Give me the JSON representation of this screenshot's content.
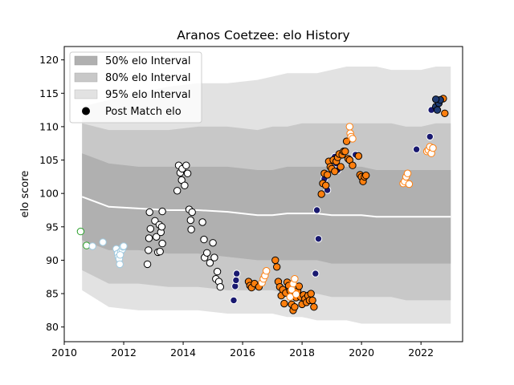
{
  "chart_data": {
    "type": "scatter",
    "title": "Aranos Coetzee: elo History",
    "xlabel": "",
    "ylabel": "elo score",
    "xlim": [
      2010.0,
      2023.4
    ],
    "ylim": [
      77.8,
      122
    ],
    "x_ticks": [
      2010,
      2012,
      2014,
      2016,
      2018,
      2020,
      2022
    ],
    "y_ticks": [
      80,
      85,
      90,
      95,
      100,
      105,
      110,
      115,
      120
    ],
    "grid": false,
    "legend": {
      "placement": "top-left",
      "entries": [
        "50% elo Interval",
        "80% elo Interval",
        "95% elo Interval",
        "Post Match elo"
      ]
    },
    "band_x": [
      2010.6,
      2011.5,
      2012.5,
      2013.5,
      2014.5,
      2015.5,
      2016.5,
      2017.0,
      2017.5,
      2018.0,
      2018.5,
      2019.0,
      2019.5,
      2020.0,
      2020.5,
      2021.0,
      2021.5,
      2022.0,
      2022.5,
      2023.0
    ],
    "interval_95": {
      "upper": [
        113,
        114,
        115,
        116,
        116.5,
        116.5,
        117,
        117.5,
        118,
        118,
        118,
        118.5,
        119,
        119,
        119,
        118.5,
        118.5,
        118.5,
        119,
        119
      ],
      "lower": [
        85.5,
        83,
        82.5,
        82.5,
        82.5,
        82,
        82,
        82,
        81.5,
        81.5,
        81,
        81,
        81,
        80.5,
        80.5,
        80.5,
        80.5,
        80.5,
        80.5,
        80.5
      ]
    },
    "interval_80": {
      "upper": [
        110.5,
        109.5,
        109.5,
        109.5,
        110,
        110,
        109.5,
        110,
        110,
        110.5,
        110.5,
        110.5,
        110.5,
        110.5,
        110.5,
        110.5,
        110,
        110,
        110.5,
        110.5
      ],
      "lower": [
        88.5,
        86.5,
        86.5,
        86,
        86,
        85.5,
        85.5,
        85.5,
        85,
        85,
        85,
        84.5,
        84.5,
        84.5,
        84.5,
        84.5,
        84,
        84,
        84,
        84
      ]
    },
    "interval_50": {
      "upper": [
        106,
        104.5,
        104,
        104,
        104,
        104,
        103.5,
        103.5,
        104,
        104,
        104,
        104,
        104,
        104,
        103.5,
        103.5,
        103.5,
        103.5,
        103.5,
        103.5
      ],
      "lower": [
        93,
        91.5,
        91.5,
        91,
        91,
        90.5,
        90,
        90,
        90,
        90,
        90,
        89.5,
        89.5,
        89.5,
        89.5,
        89.5,
        89.5,
        89.5,
        89.5,
        89.5
      ]
    },
    "series": [
      {
        "fill": "#ffffff",
        "edge": "#2ca02c",
        "points": [
          [
            2010.55,
            94.3
          ],
          [
            2010.75,
            92.2
          ]
        ]
      },
      {
        "fill": "#ffffff",
        "edge": "#9ecae1",
        "points": [
          [
            2010.95,
            92.1
          ],
          [
            2011.3,
            92.7
          ],
          [
            2011.75,
            91.7
          ],
          [
            2011.8,
            91.0
          ],
          [
            2011.82,
            90.5
          ],
          [
            2011.85,
            90.2
          ],
          [
            2011.87,
            89.4
          ],
          [
            2011.9,
            91.3
          ],
          [
            2011.95,
            91.6
          ],
          [
            2011.97,
            92.0
          ],
          [
            2012.0,
            92.1
          ],
          [
            2011.88,
            90.8
          ]
        ]
      },
      {
        "fill": "#ffffff",
        "edge": "#000000",
        "points": [
          [
            2012.8,
            89.4
          ],
          [
            2012.83,
            91.5
          ],
          [
            2012.85,
            93.3
          ],
          [
            2012.9,
            94.7
          ],
          [
            2012.87,
            97.2
          ],
          [
            2013.05,
            95.9
          ],
          [
            2013.1,
            93.5
          ],
          [
            2013.15,
            91.2
          ],
          [
            2013.2,
            95.3
          ],
          [
            2013.25,
            94.2
          ],
          [
            2013.3,
            92.5
          ],
          [
            2013.22,
            91.3
          ],
          [
            2013.3,
            97.3
          ],
          [
            2013.28,
            95.0
          ],
          [
            2013.8,
            100.4
          ],
          [
            2013.85,
            104.2
          ],
          [
            2013.9,
            103.1
          ],
          [
            2013.95,
            102.0
          ],
          [
            2013.97,
            103.7
          ],
          [
            2014.05,
            101.2
          ],
          [
            2014.1,
            104.2
          ],
          [
            2014.15,
            103.0
          ],
          [
            2014.2,
            97.6
          ],
          [
            2014.25,
            96.0
          ],
          [
            2014.27,
            94.6
          ],
          [
            2014.3,
            97.2
          ],
          [
            2014.65,
            95.7
          ],
          [
            2014.7,
            93.1
          ],
          [
            2014.72,
            90.4
          ],
          [
            2014.8,
            91.1
          ],
          [
            2014.9,
            89.6
          ],
          [
            2015.0,
            92.6
          ],
          [
            2015.05,
            90.4
          ],
          [
            2015.1,
            87.2
          ],
          [
            2015.15,
            88.3
          ],
          [
            2015.2,
            86.8
          ],
          [
            2015.25,
            86.0
          ]
        ]
      },
      {
        "fill": "#191970",
        "edge": "#ffffff",
        "points": [
          [
            2015.7,
            84.0
          ],
          [
            2015.75,
            86.1
          ],
          [
            2015.78,
            87.0
          ],
          [
            2015.8,
            88.0
          ],
          [
            2018.5,
            97.5
          ],
          [
            2018.55,
            93.2
          ],
          [
            2018.45,
            88.0
          ],
          [
            2018.75,
            102.2
          ],
          [
            2018.85,
            100.5
          ],
          [
            2019.1,
            105.5
          ],
          [
            2019.15,
            104.5
          ],
          [
            2019.2,
            103.5
          ],
          [
            2019.8,
            105.8
          ],
          [
            2021.85,
            106.6
          ],
          [
            2022.3,
            108.5
          ],
          [
            2022.35,
            112.5
          ]
        ]
      },
      {
        "fill": "#ff7f0e",
        "edge": "#000000",
        "points": [
          [
            2016.2,
            86.8
          ],
          [
            2016.25,
            86.2
          ],
          [
            2016.3,
            85.9
          ],
          [
            2016.4,
            86.5
          ],
          [
            2016.55,
            86.0
          ],
          [
            2017.1,
            90.0
          ],
          [
            2017.15,
            89.0
          ],
          [
            2017.2,
            86.8
          ],
          [
            2017.25,
            86.0
          ],
          [
            2017.3,
            84.7
          ],
          [
            2017.35,
            85.6
          ],
          [
            2017.4,
            83.5
          ],
          [
            2017.45,
            85.1
          ],
          [
            2017.5,
            86.7
          ],
          [
            2017.55,
            86.2
          ],
          [
            2017.6,
            85.4
          ],
          [
            2017.65,
            83.4
          ],
          [
            2017.7,
            82.5
          ],
          [
            2017.75,
            83.0
          ],
          [
            2017.8,
            84.4
          ],
          [
            2017.85,
            85.4
          ],
          [
            2017.9,
            86.1
          ],
          [
            2017.95,
            84.5
          ],
          [
            2018.0,
            83.4
          ],
          [
            2018.05,
            84.8
          ],
          [
            2018.1,
            84.2
          ],
          [
            2018.15,
            83.7
          ],
          [
            2018.2,
            84.7
          ],
          [
            2018.25,
            84.0
          ],
          [
            2018.3,
            85.0
          ],
          [
            2018.35,
            84.0
          ],
          [
            2018.4,
            83.0
          ],
          [
            2018.65,
            99.9
          ],
          [
            2018.7,
            101.5
          ],
          [
            2018.75,
            103.0
          ],
          [
            2018.8,
            101.2
          ],
          [
            2018.85,
            102.8
          ],
          [
            2018.9,
            104.8
          ],
          [
            2018.95,
            104.0
          ],
          [
            2019.0,
            103.7
          ],
          [
            2019.05,
            105.0
          ],
          [
            2019.1,
            103.3
          ],
          [
            2019.15,
            104.8
          ],
          [
            2019.2,
            105.4
          ],
          [
            2019.25,
            105.9
          ],
          [
            2019.3,
            104.0
          ],
          [
            2019.35,
            105.8
          ],
          [
            2019.4,
            106.3
          ],
          [
            2019.45,
            106.3
          ],
          [
            2019.5,
            107.8
          ],
          [
            2019.55,
            105.2
          ],
          [
            2019.6,
            105.0
          ],
          [
            2019.7,
            104.2
          ],
          [
            2019.9,
            105.6
          ],
          [
            2019.95,
            102.8
          ],
          [
            2020.0,
            102.5
          ],
          [
            2020.05,
            101.8
          ],
          [
            2020.1,
            102.5
          ],
          [
            2020.15,
            102.7
          ],
          [
            2022.75,
            114.2
          ],
          [
            2022.8,
            112.0
          ],
          [
            2022.6,
            113.8
          ]
        ]
      },
      {
        "fill": "#ffffff",
        "edge": "#ff7f0e",
        "points": [
          [
            2016.65,
            86.6
          ],
          [
            2016.7,
            87.2
          ],
          [
            2016.75,
            87.7
          ],
          [
            2016.8,
            88.4
          ],
          [
            2017.6,
            84.5
          ],
          [
            2017.65,
            85.6
          ],
          [
            2017.7,
            86.5
          ],
          [
            2017.75,
            87.2
          ],
          [
            2017.8,
            84.9
          ],
          [
            2019.6,
            110.0
          ],
          [
            2019.62,
            109.0
          ],
          [
            2019.65,
            108.5
          ],
          [
            2019.7,
            108.2
          ],
          [
            2021.4,
            101.5
          ],
          [
            2021.45,
            101.8
          ],
          [
            2021.5,
            102.5
          ],
          [
            2021.55,
            103.0
          ],
          [
            2021.6,
            101.4
          ],
          [
            2022.2,
            106.3
          ],
          [
            2022.25,
            106.5
          ],
          [
            2022.3,
            107.0
          ],
          [
            2022.35,
            106.0
          ],
          [
            2022.4,
            106.8
          ]
        ]
      },
      {
        "fill": "#1f3b73",
        "edge": "#000000",
        "points": [
          [
            2022.5,
            113.0
          ],
          [
            2022.55,
            112.5
          ],
          [
            2022.6,
            113.5
          ],
          [
            2022.65,
            114.0
          ],
          [
            2022.5,
            114.1
          ]
        ]
      }
    ]
  }
}
